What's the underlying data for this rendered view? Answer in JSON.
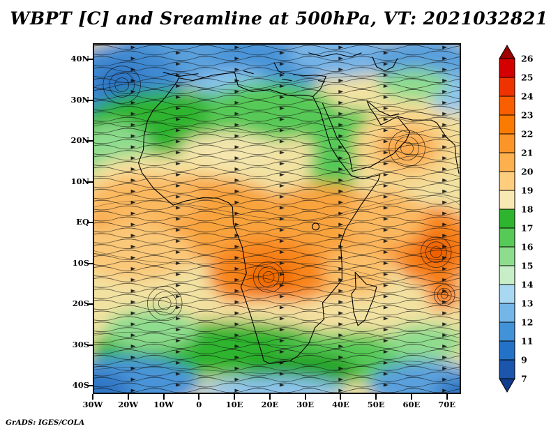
{
  "title": "WBPT [C] and Sreamline at 500hPa, VT: 2021032821",
  "credit": "GrADS: IGES/COLA",
  "axes": {
    "lat_ticks": [
      {
        "label": "40N",
        "deg": 40
      },
      {
        "label": "30N",
        "deg": 30
      },
      {
        "label": "20N",
        "deg": 20
      },
      {
        "label": "10N",
        "deg": 10
      },
      {
        "label": "EQ",
        "deg": 0
      },
      {
        "label": "10S",
        "deg": -10
      },
      {
        "label": "20S",
        "deg": -20
      },
      {
        "label": "30S",
        "deg": -30
      },
      {
        "label": "40S",
        "deg": -40
      }
    ],
    "lon_ticks": [
      {
        "label": "30W",
        "deg": -30
      },
      {
        "label": "20W",
        "deg": -20
      },
      {
        "label": "10W",
        "deg": -10
      },
      {
        "label": "0",
        "deg": 0
      },
      {
        "label": "10E",
        "deg": 10
      },
      {
        "label": "20E",
        "deg": 20
      },
      {
        "label": "30E",
        "deg": 30
      },
      {
        "label": "40E",
        "deg": 40
      },
      {
        "label": "50E",
        "deg": 50
      },
      {
        "label": "60E",
        "deg": 60
      },
      {
        "label": "70E",
        "deg": 70
      }
    ]
  },
  "colorbar": {
    "labels": [
      "26",
      "25",
      "24",
      "23",
      "22",
      "21",
      "20",
      "19",
      "18",
      "17",
      "16",
      "15",
      "14",
      "13",
      "12",
      "11",
      "9",
      "7"
    ],
    "segment_colors": [
      "#d40000",
      "#ef3300",
      "#f95e00",
      "#fb7b00",
      "#fc9528",
      "#fdb04e",
      "#fecd7d",
      "#f8e8b4",
      "#2eb42e",
      "#57c957",
      "#8edc8e",
      "#c8eec8",
      "#a8d8f2",
      "#74b6e8",
      "#4292d8",
      "#2472c8",
      "#1b55ac"
    ],
    "arrow_top_color": "#9d0000",
    "arrow_bottom_color": "#123c8c"
  },
  "chart_data": {
    "type": "heatmap",
    "title": "WBPT [C] and Sreamline at 500hPa, VT: 2021032821",
    "variable": "WBPT",
    "units": "C",
    "level_hPa": 500,
    "valid_time": "2021032821",
    "overlay": "streamlines with arrowheads",
    "basemap": "coastlines (Africa, Madagascar, Arabia, southern Europe, west India)",
    "xlabel": "longitude",
    "ylabel": "latitude",
    "lon_range_deg": [
      -30,
      74
    ],
    "lat_range_deg": [
      -42,
      44
    ],
    "contour_levels_C": [
      7,
      9,
      11,
      12,
      13,
      14,
      15,
      16,
      17,
      18,
      19,
      20,
      21,
      22,
      23,
      24,
      25,
      26
    ],
    "legend_position": "right vertical colorbar with over/under arrows",
    "grid_estimate": {
      "lons_deg": [
        -30,
        -20,
        -10,
        0,
        10,
        20,
        30,
        40,
        50,
        60,
        70
      ],
      "lats_deg": [
        40,
        30,
        20,
        10,
        0,
        -10,
        -20,
        -30,
        -40
      ],
      "wbpt_C": [
        [
          13,
          11,
          14,
          12,
          11,
          13,
          12,
          13,
          14,
          13,
          12
        ],
        [
          13,
          11,
          16,
          17,
          16,
          17,
          15,
          17,
          18,
          19,
          18
        ],
        [
          18,
          18,
          17,
          17,
          18,
          18,
          17,
          18,
          20,
          21,
          19
        ],
        [
          19,
          20,
          21,
          20,
          19,
          19,
          18,
          17,
          19,
          19,
          20
        ],
        [
          21,
          21,
          20,
          21,
          21,
          21,
          22,
          20,
          19,
          20,
          23
        ],
        [
          20,
          19,
          20,
          20,
          21,
          23,
          21,
          20,
          20,
          21,
          24
        ],
        [
          19,
          18,
          19,
          19,
          20,
          21,
          20,
          21,
          20,
          21,
          21
        ],
        [
          16,
          18,
          18,
          18,
          17,
          16,
          17,
          18,
          17,
          18,
          17
        ],
        [
          12,
          14,
          16,
          16,
          15,
          14,
          15,
          14,
          13,
          12,
          11
        ]
      ]
    },
    "circulation_centers": [
      {
        "lon_deg": -22,
        "lat_deg": 33
      },
      {
        "lon_deg": 56,
        "lat_deg": 19
      },
      {
        "lon_deg": 67,
        "lat_deg": -7
      },
      {
        "lon_deg": 19,
        "lat_deg": -13
      },
      {
        "lon_deg": -10,
        "lat_deg": -20
      },
      {
        "lon_deg": 70,
        "lat_deg": -18
      }
    ]
  }
}
